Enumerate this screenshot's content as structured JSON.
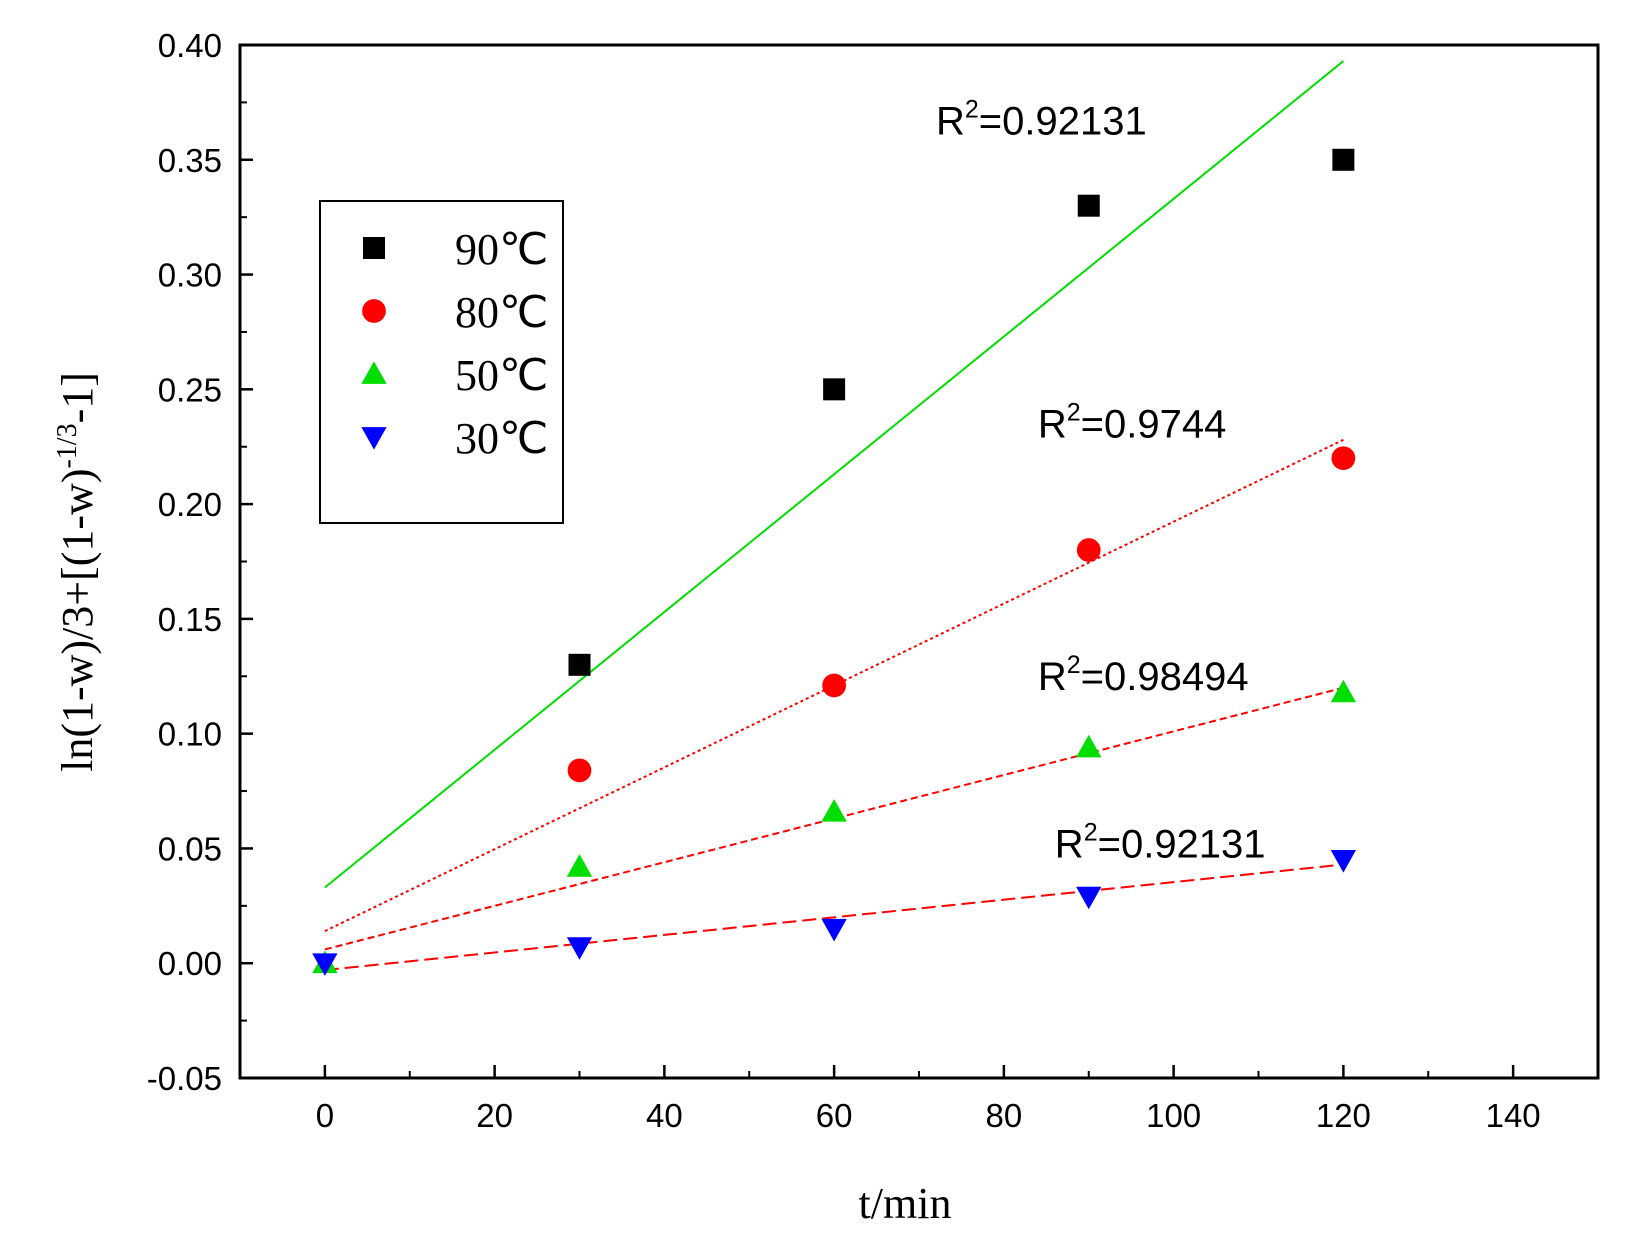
{
  "chart_data": {
    "type": "scatter",
    "xlabel": "t/min",
    "ylabel": "ln(1-w)/3+[(1-w)-1/3-1]",
    "ylabel_parts": {
      "main": "ln(1-w)/3+[(1-w)",
      "sup": "-1/3",
      "tail": "-1]"
    },
    "xlim": [
      -10,
      150
    ],
    "ylim": [
      -0.05,
      0.4
    ],
    "xticks": [
      0,
      20,
      40,
      60,
      80,
      100,
      120,
      140
    ],
    "xtick_labels": [
      "0",
      "20",
      "40",
      "60",
      "80",
      "100",
      "120",
      "140"
    ],
    "yticks": [
      -0.05,
      0.0,
      0.05,
      0.1,
      0.15,
      0.2,
      0.25,
      0.3,
      0.35,
      0.4
    ],
    "ytick_labels": [
      "-0.05",
      "0.00",
      "0.05",
      "0.10",
      "0.15",
      "0.20",
      "0.25",
      "0.30",
      "0.35",
      "0.40"
    ],
    "grid": false,
    "legend_position": "upper-left",
    "series": [
      {
        "name": "90℃",
        "marker": "square",
        "color": "#000000",
        "x": [
          30,
          60,
          90,
          120
        ],
        "y": [
          0.13,
          0.25,
          0.33,
          0.35
        ],
        "fit": {
          "x": [
            0,
            120
          ],
          "y": [
            0.033,
            0.393
          ],
          "color": "#00dd00",
          "style": "solid"
        },
        "r2_label": "R2=0.92131",
        "r2_main": "R",
        "r2_sup": "2",
        "r2_value": "=0.92131",
        "r2_at": {
          "x": 72,
          "y": 0.361
        }
      },
      {
        "name": "80℃",
        "marker": "circle",
        "color": "#ff0000",
        "x": [
          30,
          60,
          90,
          120
        ],
        "y": [
          0.084,
          0.121,
          0.18,
          0.22
        ],
        "fit": {
          "x": [
            0,
            120
          ],
          "y": [
            0.014,
            0.228
          ],
          "color": "#ff0000",
          "style": "dotted"
        },
        "r2_label": "R2=0.9744",
        "r2_main": "R",
        "r2_sup": "2",
        "r2_value": "=0.9744",
        "r2_at": {
          "x": 84,
          "y": 0.229
        }
      },
      {
        "name": "50℃",
        "marker": "triangle-up",
        "color": "#00dd00",
        "x": [
          0,
          30,
          60,
          90,
          120
        ],
        "y": [
          0.0,
          0.042,
          0.066,
          0.094,
          0.118
        ],
        "fit": {
          "x": [
            0,
            120
          ],
          "y": [
            0.006,
            0.12
          ],
          "color": "#ff0000",
          "style": "short-dash"
        },
        "r2_label": "R2=0.98494",
        "r2_main": "R",
        "r2_sup": "2",
        "r2_value": "=0.98494",
        "r2_at": {
          "x": 84,
          "y": 0.119
        }
      },
      {
        "name": "30℃",
        "marker": "triangle-down",
        "color": "#0000ff",
        "x": [
          0,
          30,
          60,
          90,
          120
        ],
        "y": [
          0.0,
          0.007,
          0.015,
          0.029,
          0.045
        ],
        "fit": {
          "x": [
            0,
            120
          ],
          "y": [
            -0.003,
            0.043
          ],
          "color": "#ff0000",
          "style": "dashed"
        },
        "r2_label": "R2=0.92131",
        "r2_main": "R",
        "r2_sup": "2",
        "r2_value": "=0.92131",
        "r2_at": {
          "x": 86,
          "y": 0.046
        }
      }
    ]
  }
}
